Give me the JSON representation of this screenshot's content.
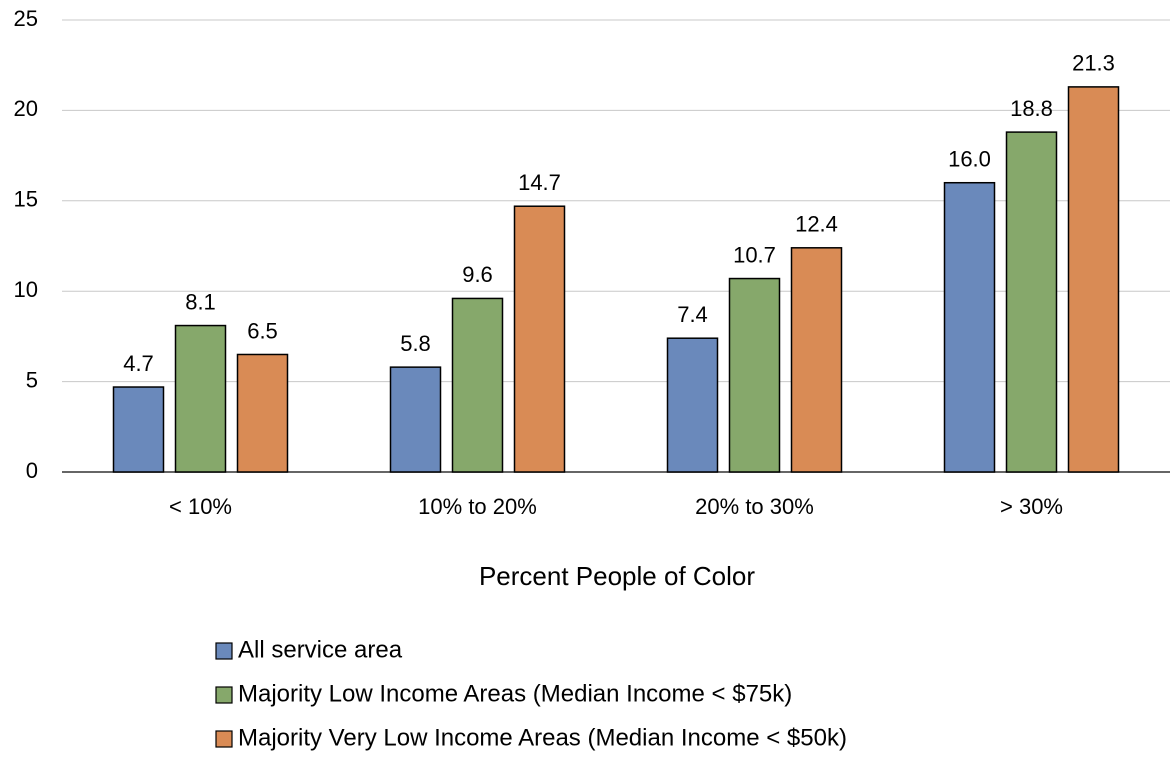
{
  "chart_data": {
    "type": "bar",
    "x_label": "Percent People of Color",
    "categories": [
      "< 10%",
      "10% to 20%",
      "20% to 30%",
      "> 30%"
    ],
    "series": [
      {
        "name": "All service area",
        "color": "#6a89bb",
        "values": [
          4.7,
          5.8,
          7.4,
          16.0
        ],
        "value_labels": [
          "4.7",
          "5.8",
          "7.4",
          "16.0"
        ]
      },
      {
        "name": "Majority Low Income Areas (Median Income < $75k)",
        "color": "#86a86b",
        "values": [
          8.1,
          9.6,
          10.7,
          18.8
        ]
      },
      {
        "name": "Majority Very Low Income Areas (Median Income < $50k)",
        "color": "#d98b55",
        "values": [
          6.5,
          14.7,
          12.4,
          21.3
        ]
      }
    ],
    "ylim": [
      0,
      25
    ],
    "yticks": [
      0,
      5,
      10,
      15,
      20,
      25
    ],
    "grid": true,
    "legend": "bottom"
  }
}
